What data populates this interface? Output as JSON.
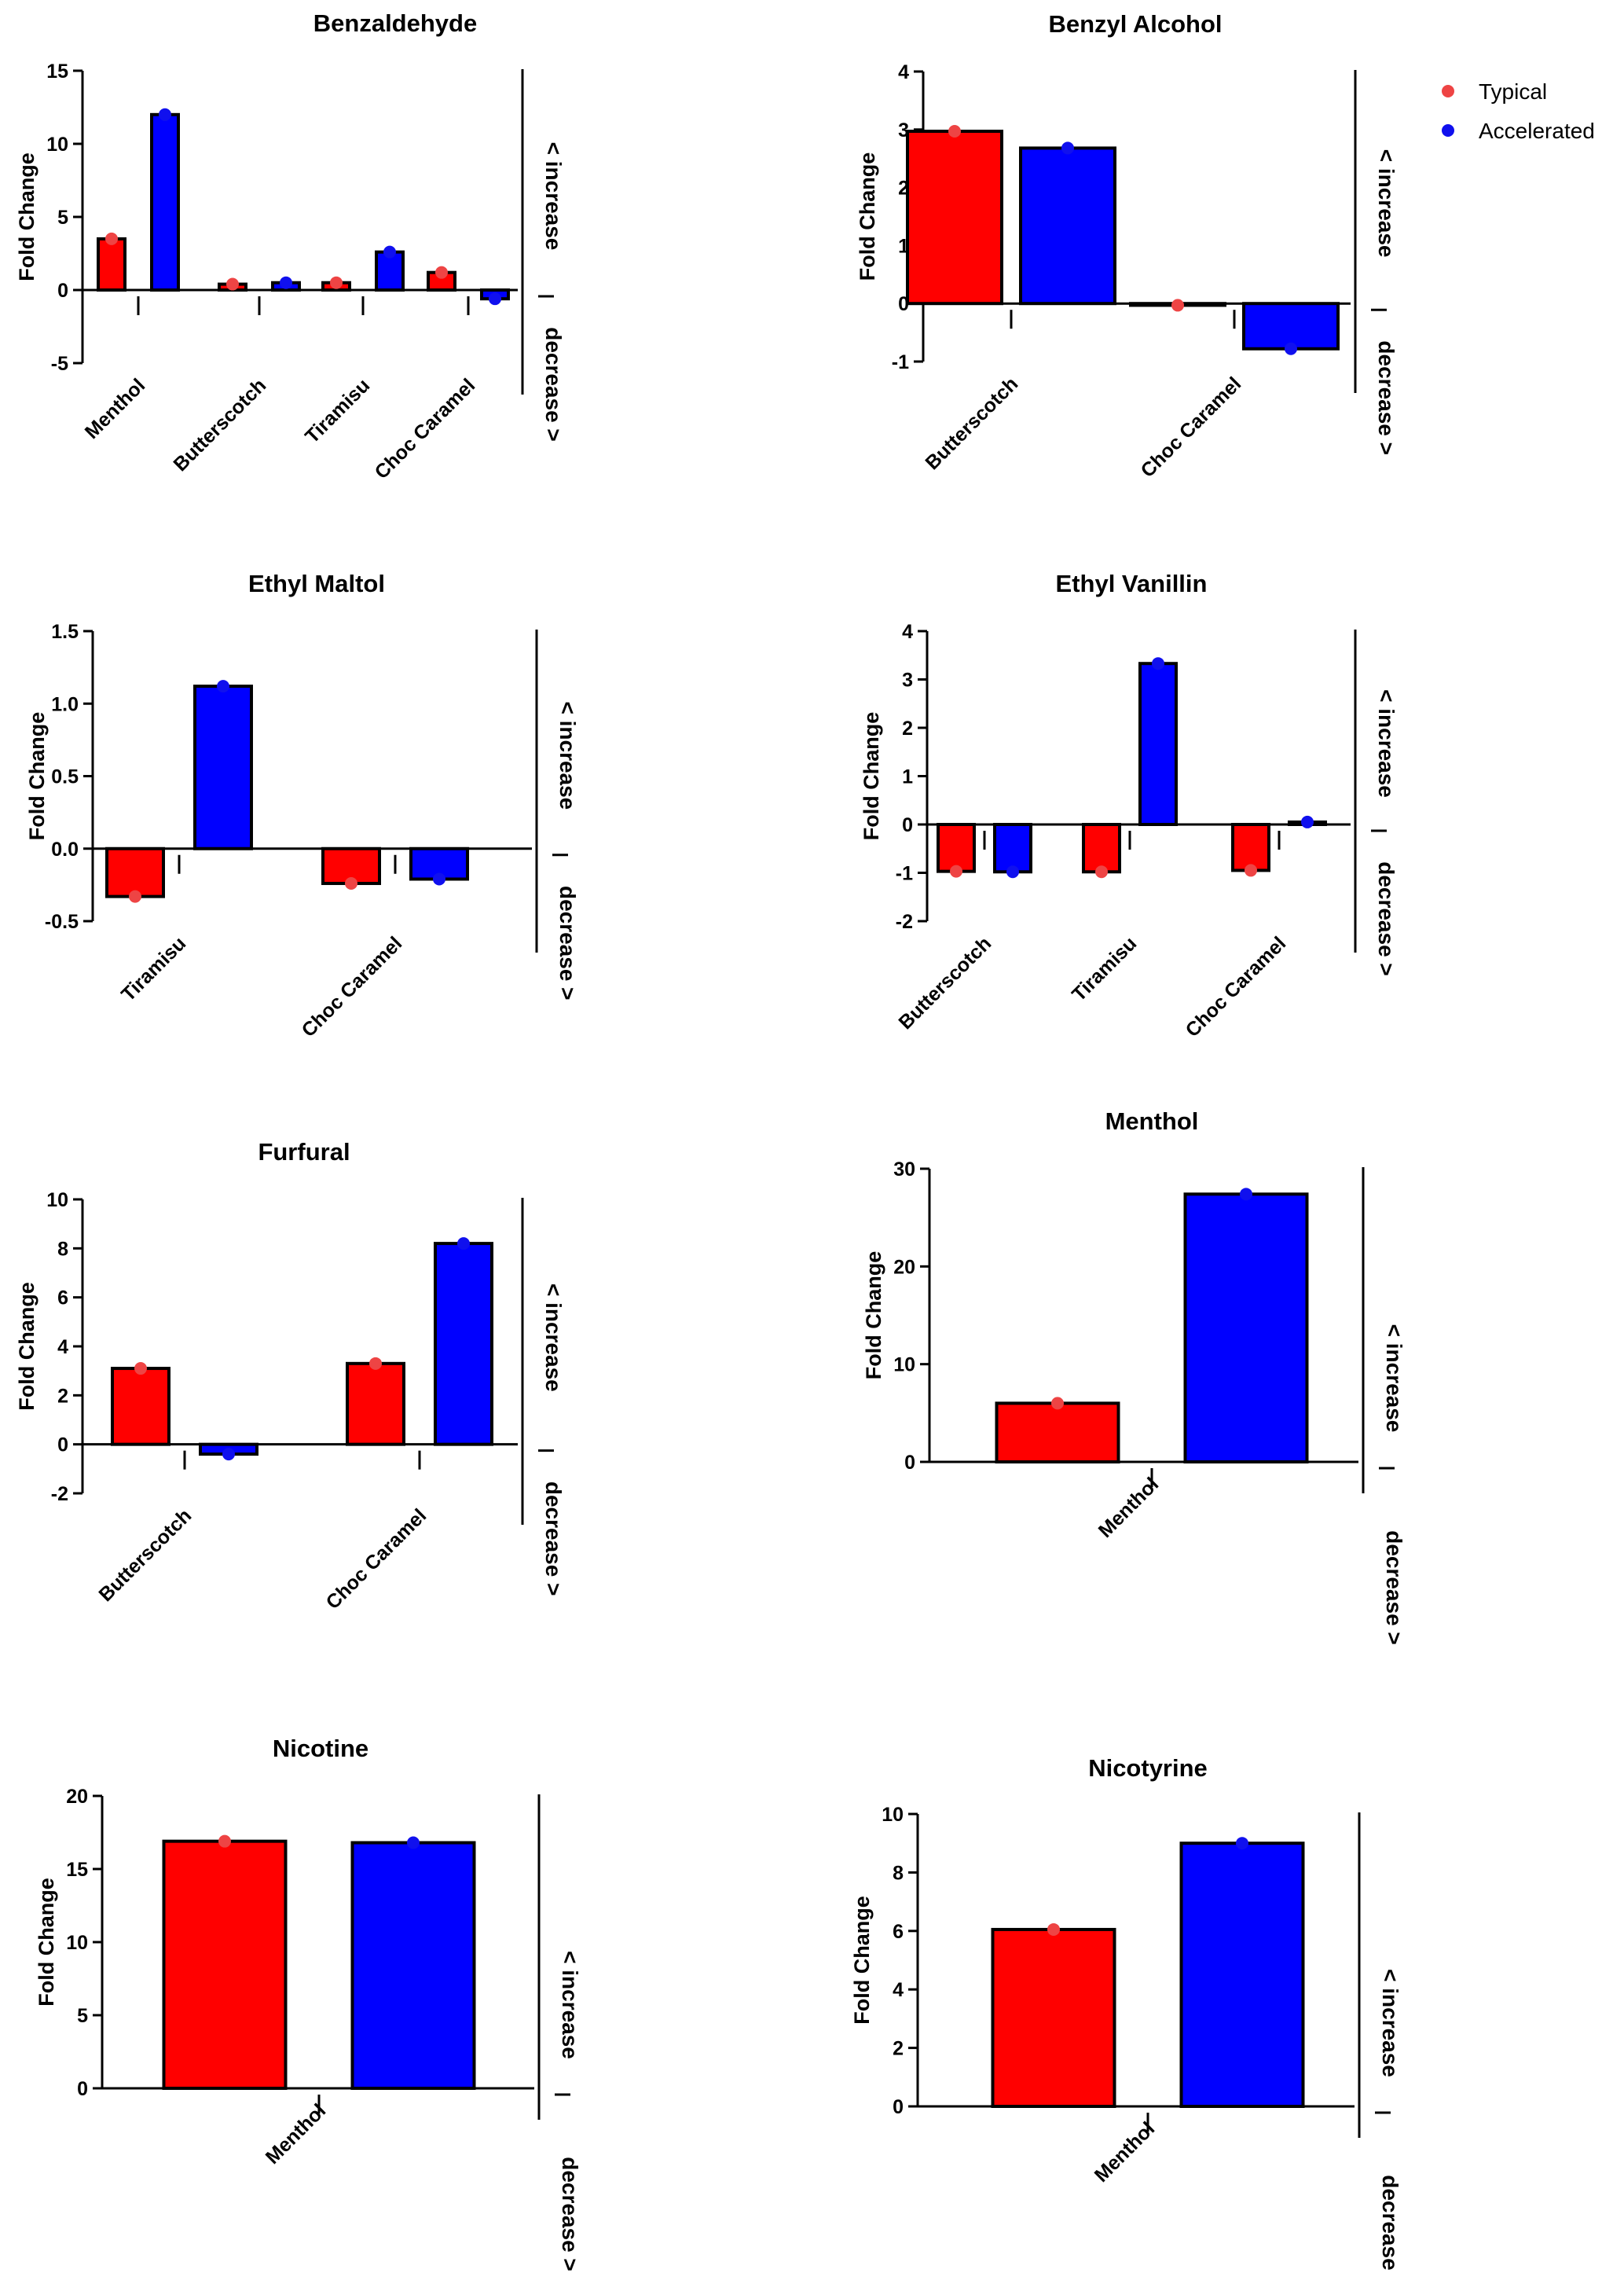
{
  "legend": {
    "items": [
      {
        "label": "Typical",
        "color": "#ee4444"
      },
      {
        "label": "Accelerated",
        "color": "#1010ee"
      }
    ]
  },
  "side_labels": {
    "increase": "< increase",
    "decrease": "decrease >"
  },
  "colors": {
    "typical_bar": "#ff0000",
    "accelerated_bar": "#0000ff",
    "typical_dot": "#ee4444",
    "accelerated_dot": "#1010ee"
  },
  "chart_data": [
    {
      "type": "bar",
      "title": "Benzaldehyde",
      "ylabel": "Fold Change",
      "ylim": [
        -5,
        15
      ],
      "yticks": [
        -5,
        0,
        5,
        10,
        15
      ],
      "categories": [
        "Menthol",
        "Butterscotch",
        "Tiramisu",
        "Choc Caramel"
      ],
      "series": [
        {
          "name": "Typical",
          "values": [
            3.5,
            0.4,
            0.5,
            1.2
          ]
        },
        {
          "name": "Accelerated",
          "values": [
            12.0,
            0.5,
            2.6,
            -0.6
          ]
        }
      ]
    },
    {
      "type": "bar",
      "title": "Benzyl Alcohol",
      "ylabel": "Fold Change",
      "ylim": [
        -1,
        4
      ],
      "yticks": [
        -1,
        0,
        1,
        2,
        3,
        4
      ],
      "categories": [
        "Butterscotch",
        "Choc Caramel"
      ],
      "series": [
        {
          "name": "Typical",
          "values": [
            2.97,
            -0.03
          ]
        },
        {
          "name": "Accelerated",
          "values": [
            2.68,
            -0.78
          ]
        }
      ]
    },
    {
      "type": "bar",
      "title": "Ethyl Maltol",
      "ylabel": "Fold Change",
      "ylim": [
        -0.5,
        1.5
      ],
      "yticks": [
        -0.5,
        0.0,
        0.5,
        1.0,
        1.5
      ],
      "tick_decimals": 1,
      "categories": [
        "Tiramisu",
        "Choc Caramel"
      ],
      "series": [
        {
          "name": "Typical",
          "values": [
            -0.33,
            -0.24
          ]
        },
        {
          "name": "Accelerated",
          "values": [
            1.12,
            -0.21
          ]
        }
      ]
    },
    {
      "type": "bar",
      "title": "Ethyl Vanillin",
      "ylabel": "Fold Change",
      "ylim": [
        -2,
        4
      ],
      "yticks": [
        -2,
        -1,
        0,
        1,
        2,
        3,
        4
      ],
      "categories": [
        "Butterscotch",
        "Tiramisu",
        "Choc Caramel"
      ],
      "series": [
        {
          "name": "Typical",
          "values": [
            -0.97,
            -0.98,
            -0.95
          ]
        },
        {
          "name": "Accelerated",
          "values": [
            -0.98,
            3.33,
            0.05
          ]
        }
      ]
    },
    {
      "type": "bar",
      "title": "Furfural",
      "ylabel": "Fold Change",
      "ylim": [
        -2,
        10
      ],
      "yticks": [
        -2,
        0,
        2,
        4,
        6,
        8,
        10
      ],
      "categories": [
        "Butterscotch",
        "Choc Caramel"
      ],
      "series": [
        {
          "name": "Typical",
          "values": [
            3.1,
            3.3
          ]
        },
        {
          "name": "Accelerated",
          "values": [
            -0.4,
            8.2
          ]
        }
      ]
    },
    {
      "type": "bar",
      "title": "Menthol",
      "ylabel": "Fold Change",
      "ylim": [
        0,
        30
      ],
      "yticks": [
        0,
        10,
        20,
        30
      ],
      "categories": [
        "Menthol"
      ],
      "series": [
        {
          "name": "Typical",
          "values": [
            6.0
          ]
        },
        {
          "name": "Accelerated",
          "values": [
            27.4
          ]
        }
      ]
    },
    {
      "type": "bar",
      "title": "Nicotine",
      "ylabel": "Fold Change",
      "ylim": [
        0,
        20
      ],
      "yticks": [
        0,
        5,
        10,
        15,
        20
      ],
      "categories": [
        "Menthol"
      ],
      "series": [
        {
          "name": "Typical",
          "values": [
            16.9
          ]
        },
        {
          "name": "Accelerated",
          "values": [
            16.8
          ]
        }
      ]
    },
    {
      "type": "bar",
      "title": "Nicotyrine",
      "ylabel": "Fold Change",
      "ylim": [
        0,
        10
      ],
      "yticks": [
        0,
        2,
        4,
        6,
        8,
        10
      ],
      "categories": [
        "Menthol"
      ],
      "series": [
        {
          "name": "Typical",
          "values": [
            6.05
          ]
        },
        {
          "name": "Accelerated",
          "values": [
            9.0
          ]
        }
      ]
    }
  ]
}
